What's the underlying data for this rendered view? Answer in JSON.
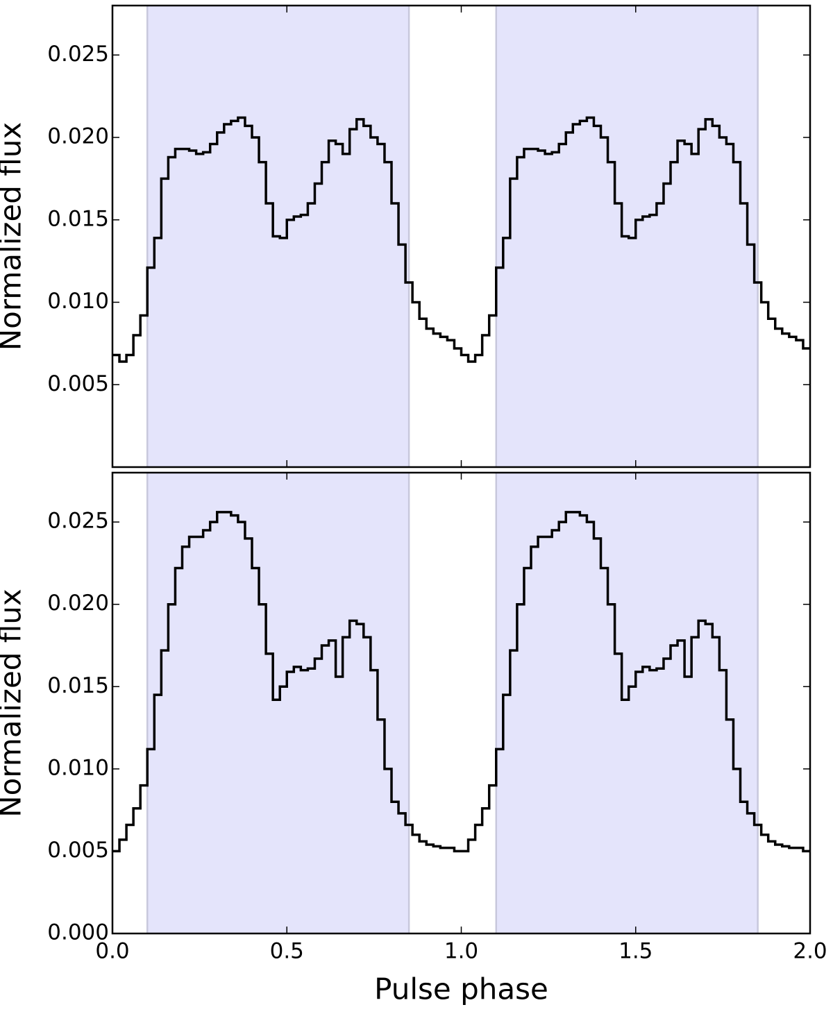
{
  "chart_data": [
    {
      "type": "step",
      "ylabel": "Normalized flux",
      "xlim": [
        0,
        2
      ],
      "ylim": [
        0,
        0.028
      ],
      "xticks": [
        {
          "value": 0,
          "label": "0.0"
        },
        {
          "value": 0.5,
          "label": "0.5"
        },
        {
          "value": 1,
          "label": "1.0"
        },
        {
          "value": 1.5,
          "label": "1.5"
        },
        {
          "value": 2,
          "label": "2.0"
        }
      ],
      "show_xtick_labels": false,
      "yticks": [
        0.005,
        {
          "value": 0.01,
          "label": "0.010"
        },
        0.015,
        {
          "value": 0.02,
          "label": "0.020"
        },
        0.025
      ],
      "shaded_regions": [
        [
          0.1,
          0.85
        ],
        [
          1.1,
          1.85
        ]
      ],
      "shade_color": "#e4e4fb",
      "shade_edge_color": "#c8c8dc",
      "series": [
        {
          "color": "#000000",
          "x": [
            0,
            0.02,
            0.04,
            0.06,
            0.08,
            0.1,
            0.12,
            0.14,
            0.16,
            0.18,
            0.2,
            0.22,
            0.24,
            0.26,
            0.28,
            0.3,
            0.32,
            0.34,
            0.36,
            0.38,
            0.4,
            0.42,
            0.44,
            0.46,
            0.48,
            0.5,
            0.52,
            0.54,
            0.56,
            0.58,
            0.6,
            0.62,
            0.64,
            0.66,
            0.68,
            0.7,
            0.72,
            0.74,
            0.76,
            0.78,
            0.8,
            0.82,
            0.84,
            0.86,
            0.88,
            0.9,
            0.92,
            0.94,
            0.96,
            0.98,
            1,
            1.02,
            1.04,
            1.06,
            1.08,
            1.1,
            1.12,
            1.14,
            1.16,
            1.18,
            1.2,
            1.22,
            1.24,
            1.26,
            1.28,
            1.3,
            1.32,
            1.34,
            1.36,
            1.38,
            1.4,
            1.42,
            1.44,
            1.46,
            1.48,
            1.5,
            1.52,
            1.54,
            1.56,
            1.58,
            1.6,
            1.62,
            1.64,
            1.66,
            1.68,
            1.7,
            1.72,
            1.74,
            1.76,
            1.78,
            1.8,
            1.82,
            1.84,
            1.86,
            1.88,
            1.9,
            1.92,
            1.94,
            1.96,
            1.98
          ],
          "values": [
            0.0068,
            0.0064,
            0.0068,
            0.008,
            0.0092,
            0.0121,
            0.0139,
            0.0175,
            0.0188,
            0.0193,
            0.0193,
            0.0192,
            0.019,
            0.0191,
            0.0196,
            0.0203,
            0.0208,
            0.021,
            0.0212,
            0.0207,
            0.02,
            0.0185,
            0.016,
            0.014,
            0.0139,
            0.015,
            0.0152,
            0.0153,
            0.016,
            0.0172,
            0.0185,
            0.0198,
            0.0196,
            0.019,
            0.0205,
            0.0211,
            0.0207,
            0.02,
            0.0196,
            0.0185,
            0.016,
            0.0135,
            0.0112,
            0.01,
            0.009,
            0.0084,
            0.0081,
            0.0079,
            0.0077,
            0.0072,
            0.0068,
            0.0064,
            0.0068,
            0.008,
            0.0092,
            0.0121,
            0.0139,
            0.0175,
            0.0188,
            0.0193,
            0.0193,
            0.0192,
            0.019,
            0.0191,
            0.0196,
            0.0203,
            0.0208,
            0.021,
            0.0212,
            0.0207,
            0.02,
            0.0185,
            0.016,
            0.014,
            0.0139,
            0.015,
            0.0152,
            0.0153,
            0.016,
            0.0172,
            0.0185,
            0.0198,
            0.0196,
            0.019,
            0.0205,
            0.0211,
            0.0207,
            0.02,
            0.0196,
            0.0185,
            0.016,
            0.0135,
            0.0112,
            0.01,
            0.009,
            0.0084,
            0.0081,
            0.0079,
            0.0077,
            0.0072
          ]
        }
      ]
    },
    {
      "type": "step",
      "xlabel": "Pulse phase",
      "ylabel": "Normalized flux",
      "xlim": [
        0,
        2
      ],
      "ylim": [
        0,
        0.028
      ],
      "xticks": [
        {
          "value": 0,
          "label": "0.0"
        },
        {
          "value": 0.5,
          "label": "0.5"
        },
        {
          "value": 1,
          "label": "1.0"
        },
        {
          "value": 1.5,
          "label": "1.5"
        },
        {
          "value": 2,
          "label": "2.0"
        }
      ],
      "show_xtick_labels": true,
      "yticks": [
        {
          "value": 0,
          "label": "0.000"
        },
        0.005,
        {
          "value": 0.01,
          "label": "0.010"
        },
        0.015,
        {
          "value": 0.02,
          "label": "0.020"
        },
        0.025
      ],
      "shaded_regions": [
        [
          0.1,
          0.85
        ],
        [
          1.1,
          1.85
        ]
      ],
      "shade_color": "#e4e4fb",
      "shade_edge_color": "#c8c8dc",
      "series": [
        {
          "color": "#000000",
          "x": [
            0,
            0.02,
            0.04,
            0.06,
            0.08,
            0.1,
            0.12,
            0.14,
            0.16,
            0.18,
            0.2,
            0.22,
            0.24,
            0.26,
            0.28,
            0.3,
            0.32,
            0.34,
            0.36,
            0.38,
            0.4,
            0.42,
            0.44,
            0.46,
            0.48,
            0.5,
            0.52,
            0.54,
            0.56,
            0.58,
            0.6,
            0.62,
            0.64,
            0.66,
            0.68,
            0.7,
            0.72,
            0.74,
            0.76,
            0.78,
            0.8,
            0.82,
            0.84,
            0.86,
            0.88,
            0.9,
            0.92,
            0.94,
            0.96,
            0.98,
            1,
            1.02,
            1.04,
            1.06,
            1.08,
            1.1,
            1.12,
            1.14,
            1.16,
            1.18,
            1.2,
            1.22,
            1.24,
            1.26,
            1.28,
            1.3,
            1.32,
            1.34,
            1.36,
            1.38,
            1.4,
            1.42,
            1.44,
            1.46,
            1.48,
            1.5,
            1.52,
            1.54,
            1.56,
            1.58,
            1.6,
            1.62,
            1.64,
            1.66,
            1.68,
            1.7,
            1.72,
            1.74,
            1.76,
            1.78,
            1.8,
            1.82,
            1.84,
            1.86,
            1.88,
            1.9,
            1.92,
            1.94,
            1.96,
            1.98
          ],
          "values": [
            0.005,
            0.0057,
            0.0066,
            0.0076,
            0.009,
            0.0112,
            0.0145,
            0.0172,
            0.02,
            0.0222,
            0.0235,
            0.0241,
            0.0241,
            0.0245,
            0.025,
            0.0256,
            0.0256,
            0.0254,
            0.025,
            0.024,
            0.0222,
            0.02,
            0.017,
            0.0142,
            0.015,
            0.0159,
            0.0162,
            0.016,
            0.0161,
            0.0167,
            0.0175,
            0.0178,
            0.0156,
            0.018,
            0.019,
            0.0188,
            0.018,
            0.016,
            0.013,
            0.01,
            0.008,
            0.0073,
            0.0066,
            0.006,
            0.0056,
            0.0054,
            0.0053,
            0.0052,
            0.0052,
            0.005,
            0.005,
            0.0057,
            0.0066,
            0.0076,
            0.009,
            0.0112,
            0.0145,
            0.0172,
            0.02,
            0.0222,
            0.0235,
            0.0241,
            0.0241,
            0.0245,
            0.025,
            0.0256,
            0.0256,
            0.0254,
            0.025,
            0.024,
            0.0222,
            0.02,
            0.017,
            0.0142,
            0.015,
            0.0159,
            0.0162,
            0.016,
            0.0161,
            0.0167,
            0.0175,
            0.0178,
            0.0156,
            0.018,
            0.019,
            0.0188,
            0.018,
            0.016,
            0.013,
            0.01,
            0.008,
            0.0073,
            0.0066,
            0.006,
            0.0056,
            0.0054,
            0.0053,
            0.0052,
            0.0052,
            0.005
          ]
        }
      ]
    }
  ]
}
